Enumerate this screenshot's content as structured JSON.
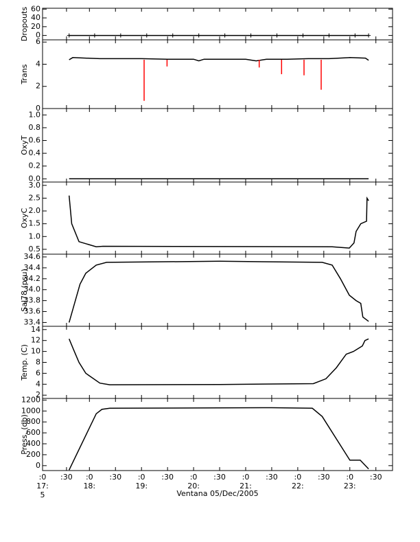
{
  "chart_data": [
    {
      "type": "line",
      "ylabel": "Dropouts",
      "xlim": [
        17.1,
        23.82
      ],
      "ylim": [
        -10,
        62
      ],
      "yticks": [
        0,
        20,
        40,
        60
      ],
      "markers": true,
      "series": [
        {
          "color": "#000000",
          "x": [
            17.61,
            18.1,
            18.6,
            19.1,
            19.6,
            20.1,
            20.6,
            21.1,
            21.6,
            22.1,
            22.6,
            23.1,
            23.36
          ],
          "values": [
            0,
            0,
            0,
            0,
            0,
            0,
            0,
            0,
            0,
            0,
            0,
            0,
            0
          ]
        }
      ]
    },
    {
      "type": "line",
      "ylabel": "Trans",
      "xlim": [
        17.1,
        23.82
      ],
      "ylim": [
        0,
        6.2
      ],
      "yticks": [
        0,
        2,
        4,
        6
      ],
      "series": [
        {
          "color": "#000000",
          "x": [
            17.61,
            17.68,
            18.2,
            19.0,
            19.5,
            20.0,
            20.1,
            20.2,
            20.6,
            21.0,
            21.2,
            21.4,
            21.8,
            22.2,
            22.6,
            23.0,
            23.3,
            23.36
          ],
          "values": [
            4.4,
            4.6,
            4.5,
            4.5,
            4.45,
            4.45,
            4.3,
            4.45,
            4.45,
            4.45,
            4.3,
            4.45,
            4.45,
            4.5,
            4.5,
            4.6,
            4.55,
            4.35
          ]
        },
        {
          "color": "#ff0000",
          "x": [
            19.05,
            19.05,
            null,
            19.49,
            19.49,
            null,
            21.26,
            21.26,
            null,
            21.69,
            21.69,
            null,
            22.12,
            22.12,
            null,
            22.45,
            22.45
          ],
          "values": [
            4.4,
            0.7,
            null,
            4.4,
            3.8,
            null,
            4.4,
            3.7,
            null,
            4.4,
            3.1,
            null,
            4.4,
            3.0,
            null,
            4.4,
            1.7
          ]
        }
      ]
    },
    {
      "type": "line",
      "ylabel": "OxyT",
      "xlim": [
        17.1,
        23.82
      ],
      "ylim": [
        -0.05,
        1.1
      ],
      "yticks": [
        {
          "value": 0,
          "label": "0.0"
        },
        0.2,
        0.4,
        0.6,
        0.8,
        {
          "value": 1,
          "label": "1.0"
        }
      ],
      "series": [
        {
          "color": "#000000",
          "x": [
            17.61,
            23.36
          ],
          "values": [
            0,
            0
          ]
        }
      ]
    },
    {
      "type": "line",
      "ylabel": "OxyC",
      "xlim": [
        17.1,
        23.82
      ],
      "ylim": [
        0.31,
        3.13
      ],
      "yticks": [
        0.5,
        {
          "value": 1,
          "label": "1.0"
        },
        1.5,
        {
          "value": 2,
          "label": "2.0"
        },
        2.5,
        {
          "value": 3,
          "label": "3.0"
        }
      ],
      "series": [
        {
          "color": "#000000",
          "x": [
            17.61,
            17.66,
            17.8,
            18.13,
            18.26,
            22.66,
            22.99,
            23.08,
            23.12,
            23.21,
            23.32,
            23.33,
            23.36
          ],
          "values": [
            2.6,
            1.5,
            0.8,
            0.6,
            0.62,
            0.6,
            0.55,
            0.75,
            1.2,
            1.5,
            1.6,
            2.5,
            2.4
          ]
        }
      ]
    },
    {
      "type": "line",
      "ylabel": "Sal78 (psu)",
      "xlim": [
        17.1,
        23.82
      ],
      "ylim": [
        33.33,
        34.65
      ],
      "yticks": [
        33.4,
        33.6,
        33.8,
        {
          "value": 34,
          "label": "34.0"
        },
        34.2,
        34.4,
        34.6
      ],
      "series": [
        {
          "color": "#000000",
          "x": [
            17.61,
            17.7,
            17.82,
            17.93,
            18.13,
            18.33,
            20.5,
            22.47,
            22.66,
            22.82,
            22.99,
            23.12,
            23.21,
            23.25,
            23.36
          ],
          "values": [
            33.4,
            33.7,
            34.1,
            34.3,
            34.45,
            34.5,
            34.52,
            34.5,
            34.45,
            34.2,
            33.9,
            33.8,
            33.75,
            33.5,
            33.42
          ]
        }
      ]
    },
    {
      "type": "line",
      "ylabel": "Temp. (C)",
      "xlim": [
        17.1,
        23.82
      ],
      "ylim": [
        1.4,
        14.6
      ],
      "yticks": [
        2,
        4,
        6,
        8,
        10,
        12,
        14
      ],
      "series": [
        {
          "color": "#000000",
          "x": [
            17.61,
            17.71,
            17.8,
            17.93,
            18.2,
            18.39,
            20.5,
            22.3,
            22.54,
            22.74,
            22.93,
            23.07,
            23.24,
            23.29,
            23.36
          ],
          "values": [
            12.3,
            10,
            8,
            6,
            4.2,
            3.9,
            3.95,
            4.1,
            5,
            7,
            9.5,
            10,
            11,
            12,
            12.3
          ]
        }
      ]
    },
    {
      "type": "line",
      "ylabel": "Press. (db)",
      "xlabel": "Ventana 05/Dec/2005",
      "xlim": [
        17.1,
        23.82
      ],
      "ylim": [
        -90,
        1230
      ],
      "yticks": [
        0,
        200,
        400,
        600,
        800,
        1000,
        1200
      ],
      "xticks": [
        {
          "value": 17.1,
          "label": ":0"
        },
        {
          "value": 17.56,
          "label": ":30"
        },
        {
          "value": 18,
          "label": ":0"
        },
        {
          "value": 18.5,
          "label": ":30"
        },
        {
          "value": 19,
          "label": ":0"
        },
        {
          "value": 19.5,
          "label": ":30"
        },
        {
          "value": 20,
          "label": ":0"
        },
        {
          "value": 20.5,
          "label": ":30"
        },
        {
          "value": 21,
          "label": ":0"
        },
        {
          "value": 21.5,
          "label": ":30"
        },
        {
          "value": 22,
          "label": ":0"
        },
        {
          "value": 22.5,
          "label": ":30"
        },
        {
          "value": 23,
          "label": ":0"
        },
        {
          "value": 23.5,
          "label": ":30"
        }
      ],
      "hour_ticks": [
        {
          "value": 17.1,
          "label": "17:"
        },
        {
          "value": 18,
          "label": "18:"
        },
        {
          "value": 19,
          "label": "19:"
        },
        {
          "value": 20,
          "label": "20:"
        },
        {
          "value": 21,
          "label": "21:"
        },
        {
          "value": 22,
          "label": "22:"
        },
        {
          "value": 23,
          "label": "23:"
        }
      ],
      "sub_tick": {
        "value": 17.1,
        "label": "5"
      },
      "series": [
        {
          "color": "#000000",
          "x": [
            17.61,
            18.13,
            18.24,
            18.39,
            21.5,
            22.28,
            22.47,
            23.0,
            23.2,
            23.36
          ],
          "values": [
            -80,
            950,
            1030,
            1050,
            1060,
            1050,
            900,
            100,
            100,
            -60
          ]
        }
      ]
    }
  ]
}
